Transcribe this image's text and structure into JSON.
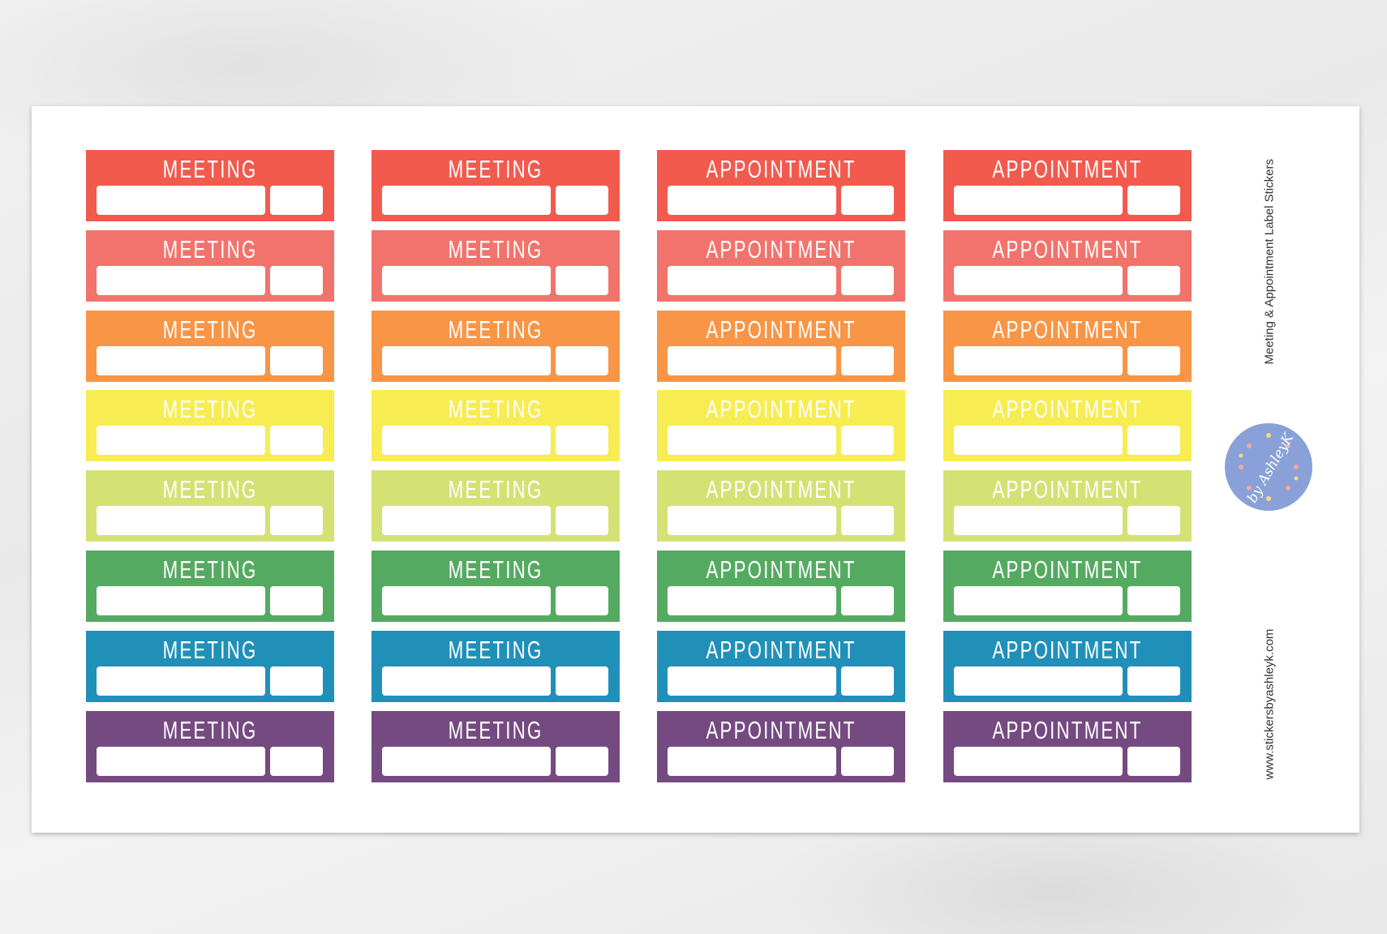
{
  "sheet": {
    "title": "Meeting & Appointment  Label Stickers",
    "website": "www.stickersbyashleyk.com",
    "logo_text": "by AshleyK"
  },
  "columns": [
    "MEETING",
    "MEETING",
    "APPOINTMENT",
    "APPOINTMENT"
  ],
  "row_colors": [
    "#f25a4e",
    "#f2736c",
    "#f89546",
    "#f7ec52",
    "#d4e274",
    "#55aa62",
    "#2190b8",
    "#744a80"
  ],
  "logo_color": "#8aa0d8"
}
